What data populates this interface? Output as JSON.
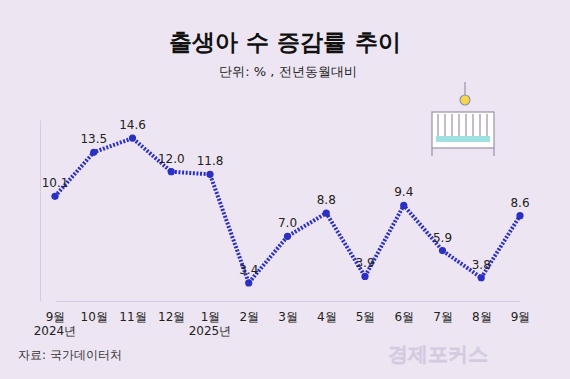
{
  "chart_data": {
    "type": "line",
    "title": "출생아 수 증감률 추이",
    "subtitle": "단위: % , 전년동월대비",
    "categories": [
      "9월",
      "10월",
      "11월",
      "12월",
      "1월",
      "2월",
      "3월",
      "4월",
      "5월",
      "6월",
      "7월",
      "8월",
      "9월"
    ],
    "values": [
      10.1,
      13.5,
      14.6,
      12.0,
      11.8,
      3.4,
      7.0,
      8.8,
      3.9,
      9.4,
      5.9,
      3.8,
      8.6
    ],
    "value_labels": [
      "10.1",
      "13.5",
      "14.6",
      "12.0",
      "11.8",
      "3.4",
      "7.0",
      "8.8",
      "3.9",
      "9.4",
      "5.9",
      "3.8",
      "8.6"
    ],
    "annotations": [
      {
        "text": "2024년",
        "category": 0
      },
      {
        "text": "2025년",
        "category": 4
      }
    ],
    "source": "자료: 국가데이터처",
    "logo": "경제포커스",
    "color": "#2b2fc4",
    "line_style": "dotted",
    "marker": "circle",
    "ylim": [
      2,
      16
    ],
    "tick_labels": "x",
    "data_labels": true,
    "grid": false
  }
}
